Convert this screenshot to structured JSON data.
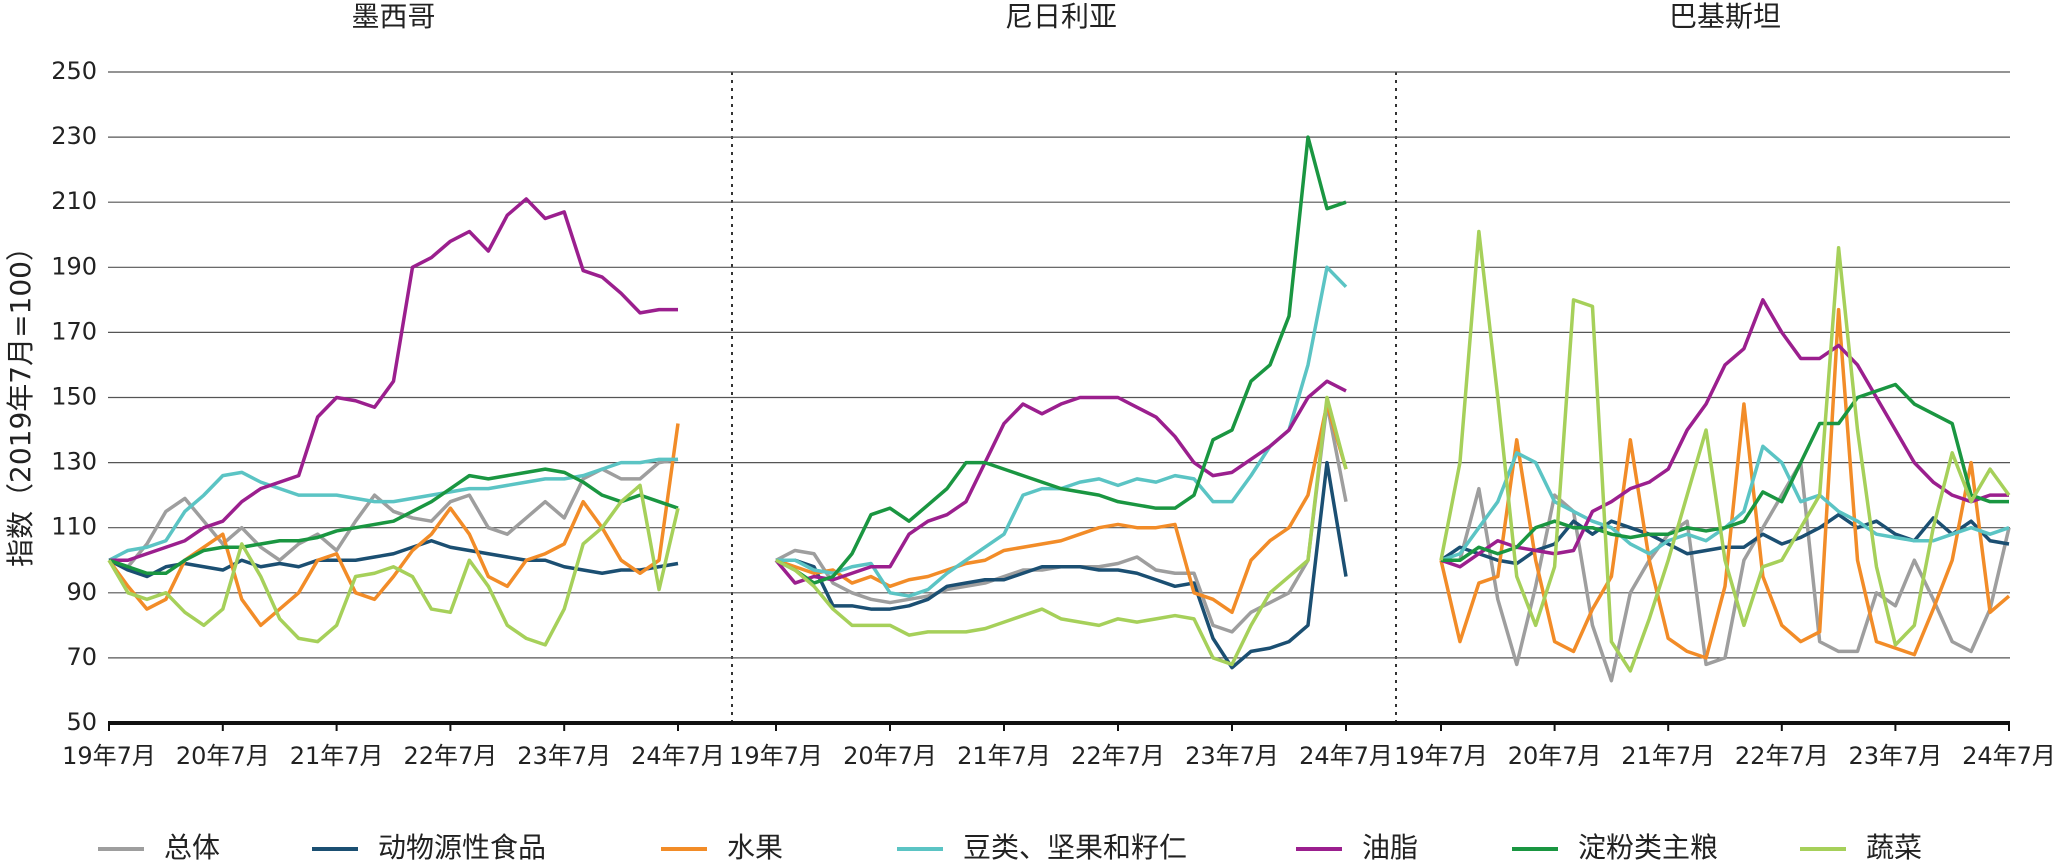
{
  "chart_data": [
    {
      "type": "line",
      "title": "墨西哥",
      "ylabel": "指数（2019年7月=100）",
      "x": [
        0,
        2,
        4,
        6,
        8,
        10,
        12,
        14,
        16,
        18,
        20,
        22,
        24,
        26,
        28,
        30,
        32,
        34,
        36,
        38,
        40,
        42,
        44,
        46,
        48,
        50,
        52,
        54,
        56,
        58,
        60
      ],
      "xlim": [
        0,
        60
      ],
      "xticks": [
        {
          "value": 0,
          "label": "19年7月"
        },
        {
          "value": 12,
          "label": "20年7月"
        },
        {
          "value": 24,
          "label": "21年7月"
        },
        {
          "value": 36,
          "label": "22年7月"
        },
        {
          "value": 48,
          "label": "23年7月"
        },
        {
          "value": 60,
          "label": "24年7月"
        }
      ],
      "ylim": [
        50,
        250
      ],
      "yticks": [
        50,
        70,
        90,
        110,
        130,
        150,
        170,
        190,
        210,
        230,
        250
      ],
      "grid": true,
      "series": [
        {
          "name": "总体",
          "color": "#9e9e9e",
          "values": [
            100,
            98,
            105,
            115,
            119,
            112,
            105,
            110,
            104,
            100,
            105,
            108,
            103,
            112,
            120,
            115,
            113,
            112,
            118,
            120,
            110,
            108,
            113,
            118,
            113,
            125,
            128,
            125,
            125,
            130,
            131
          ]
        },
        {
          "name": "动物源性食品",
          "color": "#1b4f72",
          "values": [
            100,
            97,
            95,
            98,
            99,
            98,
            97,
            100,
            98,
            99,
            98,
            100,
            100,
            100,
            101,
            102,
            104,
            106,
            104,
            103,
            102,
            101,
            100,
            100,
            98,
            97,
            96,
            97,
            97,
            98,
            99
          ]
        },
        {
          "name": "水果",
          "color": "#f28c28",
          "values": [
            100,
            92,
            85,
            88,
            100,
            104,
            108,
            88,
            80,
            85,
            90,
            100,
            102,
            90,
            88,
            95,
            103,
            108,
            116,
            108,
            95,
            92,
            100,
            102,
            105,
            118,
            110,
            100,
            96,
            100,
            142
          ]
        },
        {
          "name": "豆类、坚果和籽仁",
          "color": "#5bc4c4",
          "values": [
            100,
            103,
            104,
            106,
            115,
            120,
            126,
            127,
            124,
            122,
            120,
            120,
            120,
            119,
            118,
            118,
            119,
            120,
            121,
            122,
            122,
            123,
            124,
            125,
            125,
            126,
            128,
            130,
            130,
            131,
            131
          ]
        },
        {
          "name": "油脂",
          "color": "#9b1f8e",
          "values": [
            100,
            100,
            102,
            104,
            106,
            110,
            112,
            118,
            122,
            124,
            126,
            144,
            150,
            149,
            147,
            155,
            190,
            193,
            198,
            201,
            195,
            206,
            211,
            205,
            207,
            189,
            187,
            182,
            176,
            177,
            177
          ]
        },
        {
          "name": "淀粉类主粮",
          "color": "#1a9641",
          "values": [
            100,
            98,
            96,
            96,
            100,
            103,
            104,
            104,
            105,
            106,
            106,
            107,
            109,
            110,
            111,
            112,
            115,
            118,
            122,
            126,
            125,
            126,
            127,
            128,
            127,
            124,
            120,
            118,
            120,
            118,
            116
          ]
        },
        {
          "name": "蔬菜",
          "color": "#a6d05a",
          "values": [
            100,
            90,
            88,
            90,
            84,
            80,
            85,
            105,
            95,
            82,
            76,
            75,
            80,
            95,
            96,
            98,
            95,
            85,
            84,
            100,
            92,
            80,
            76,
            74,
            85,
            105,
            110,
            118,
            123,
            91,
            116
          ]
        }
      ]
    },
    {
      "type": "line",
      "title": "尼日利亚",
      "x": [
        0,
        2,
        4,
        6,
        8,
        10,
        12,
        14,
        16,
        18,
        20,
        22,
        24,
        26,
        28,
        30,
        32,
        34,
        36,
        38,
        40,
        42,
        44,
        46,
        48,
        50,
        52,
        54,
        56,
        58,
        60
      ],
      "xlim": [
        0,
        60
      ],
      "xticks": [
        {
          "value": 0,
          "label": "19年7月"
        },
        {
          "value": 12,
          "label": "20年7月"
        },
        {
          "value": 24,
          "label": "21年7月"
        },
        {
          "value": 36,
          "label": "22年7月"
        },
        {
          "value": 48,
          "label": "23年7月"
        },
        {
          "value": 60,
          "label": "24年7月"
        }
      ],
      "ylim": [
        50,
        250
      ],
      "series": [
        {
          "color": "#9e9e9e",
          "values": [
            100,
            103,
            102,
            93,
            90,
            88,
            87,
            88,
            89,
            91,
            92,
            93,
            95,
            97,
            97,
            98,
            98,
            98,
            99,
            101,
            97,
            96,
            96,
            80,
            78,
            84,
            87,
            90,
            100,
            148,
            118
          ]
        },
        {
          "color": "#1b4f72",
          "values": [
            100,
            100,
            98,
            86,
            86,
            85,
            85,
            86,
            88,
            92,
            93,
            94,
            94,
            96,
            98,
            98,
            98,
            97,
            97,
            96,
            94,
            92,
            93,
            76,
            67,
            72,
            73,
            75,
            80,
            130,
            95
          ]
        },
        {
          "color": "#f28c28",
          "values": [
            100,
            98,
            96,
            97,
            93,
            95,
            92,
            94,
            95,
            97,
            99,
            100,
            103,
            104,
            105,
            106,
            108,
            110,
            111,
            110,
            110,
            111,
            90,
            88,
            84,
            100,
            106,
            110,
            120,
            148,
            128
          ]
        },
        {
          "color": "#5bc4c4",
          "values": [
            100,
            100,
            97,
            96,
            98,
            99,
            90,
            89,
            91,
            96,
            100,
            104,
            108,
            120,
            122,
            122,
            124,
            125,
            123,
            125,
            124,
            126,
            125,
            118,
            118,
            126,
            135,
            140,
            160,
            190,
            184
          ]
        },
        {
          "color": "#9b1f8e",
          "values": [
            100,
            93,
            95,
            94,
            96,
            98,
            98,
            108,
            112,
            114,
            118,
            130,
            142,
            148,
            145,
            148,
            150,
            150,
            150,
            147,
            144,
            138,
            130,
            126,
            127,
            131,
            135,
            140,
            150,
            155,
            152
          ]
        },
        {
          "color": "#1a9641",
          "values": [
            100,
            97,
            93,
            95,
            102,
            114,
            116,
            112,
            117,
            122,
            130,
            130,
            128,
            126,
            124,
            122,
            121,
            120,
            118,
            117,
            116,
            116,
            120,
            137,
            140,
            155,
            160,
            175,
            230,
            208,
            210
          ]
        },
        {
          "color": "#a6d05a",
          "values": [
            100,
            97,
            92,
            85,
            80,
            80,
            80,
            77,
            78,
            78,
            78,
            79,
            81,
            83,
            85,
            82,
            81,
            80,
            82,
            81,
            82,
            83,
            82,
            70,
            68,
            80,
            90,
            95,
            100,
            150,
            128
          ]
        }
      ]
    },
    {
      "type": "line",
      "title": "巴基斯坦",
      "x": [
        0,
        2,
        4,
        6,
        8,
        10,
        12,
        14,
        16,
        18,
        20,
        22,
        24,
        26,
        28,
        30,
        32,
        34,
        36,
        38,
        40,
        42,
        44,
        46,
        48,
        50,
        52,
        54,
        56,
        58,
        60
      ],
      "xlim": [
        0,
        60
      ],
      "xticks": [
        {
          "value": 0,
          "label": "19年7月"
        },
        {
          "value": 12,
          "label": "20年7月"
        },
        {
          "value": 24,
          "label": "21年7月"
        },
        {
          "value": 36,
          "label": "22年7月"
        },
        {
          "value": 48,
          "label": "23年7月"
        },
        {
          "value": 60,
          "label": "24年7月"
        }
      ],
      "ylim": [
        50,
        250
      ],
      "series": [
        {
          "color": "#9e9e9e",
          "values": [
            100,
            100,
            122,
            88,
            68,
            92,
            120,
            115,
            80,
            63,
            90,
            100,
            108,
            112,
            68,
            70,
            100,
            110,
            120,
            130,
            75,
            72,
            72,
            90,
            86,
            100,
            88,
            75,
            72,
            85,
            110
          ]
        },
        {
          "color": "#1b4f72",
          "values": [
            100,
            104,
            102,
            100,
            99,
            103,
            105,
            112,
            108,
            112,
            110,
            108,
            105,
            102,
            103,
            104,
            104,
            108,
            105,
            107,
            110,
            114,
            110,
            112,
            108,
            106,
            113,
            108,
            112,
            106,
            105
          ]
        },
        {
          "color": "#f28c28",
          "values": [
            100,
            75,
            93,
            95,
            137,
            100,
            75,
            72,
            85,
            95,
            137,
            100,
            76,
            72,
            70,
            92,
            148,
            95,
            80,
            75,
            78,
            177,
            100,
            75,
            73,
            71,
            85,
            100,
            130,
            84,
            89
          ]
        },
        {
          "color": "#5bc4c4",
          "values": [
            100,
            102,
            110,
            118,
            133,
            130,
            118,
            115,
            112,
            110,
            105,
            102,
            106,
            108,
            106,
            110,
            115,
            135,
            130,
            118,
            120,
            115,
            112,
            108,
            107,
            106,
            106,
            108,
            110,
            108,
            110
          ]
        },
        {
          "color": "#9b1f8e",
          "values": [
            100,
            98,
            102,
            106,
            104,
            103,
            102,
            103,
            115,
            118,
            122,
            124,
            128,
            140,
            148,
            160,
            165,
            180,
            170,
            162,
            162,
            166,
            160,
            150,
            140,
            130,
            124,
            120,
            118,
            120,
            120
          ]
        },
        {
          "color": "#1a9641",
          "values": [
            100,
            100,
            104,
            102,
            104,
            110,
            112,
            110,
            110,
            108,
            107,
            108,
            108,
            110,
            109,
            110,
            112,
            121,
            118,
            130,
            142,
            142,
            150,
            152,
            154,
            148,
            145,
            142,
            120,
            118,
            118
          ]
        },
        {
          "color": "#a6d05a",
          "values": [
            100,
            130,
            201,
            150,
            95,
            80,
            98,
            180,
            178,
            75,
            66,
            82,
            100,
            120,
            140,
            100,
            80,
            98,
            100,
            110,
            120,
            196,
            140,
            98,
            74,
            80,
            110,
            133,
            118,
            128,
            120
          ]
        }
      ]
    }
  ]
}
